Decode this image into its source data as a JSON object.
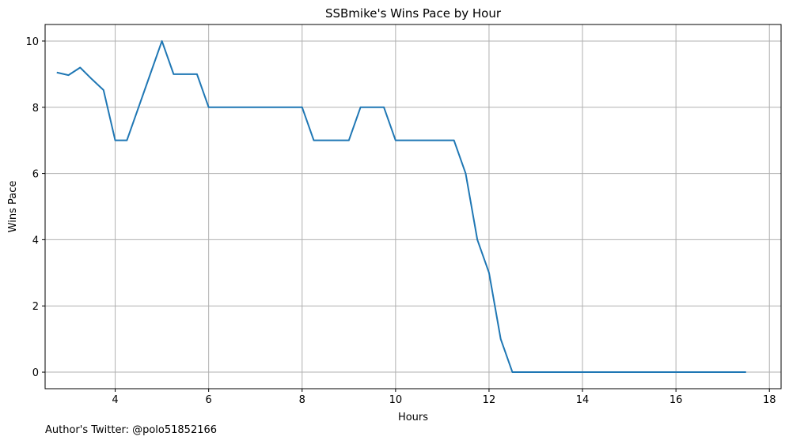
{
  "chart_data": {
    "type": "line",
    "title": "SSBmike's Wins Pace by Hour",
    "xlabel": "Hours",
    "ylabel": "Wins Pace",
    "xlim": [
      2.5,
      18.25
    ],
    "ylim": [
      -0.5,
      10.5
    ],
    "xticks": [
      4,
      6,
      8,
      10,
      12,
      14,
      16,
      18
    ],
    "yticks": [
      0,
      2,
      4,
      6,
      8,
      10
    ],
    "grid": true,
    "line_color": "#1f77b4",
    "grid_color": "#b0b0b0",
    "series": [
      {
        "x": [
          2.75,
          3.0,
          3.25,
          3.5,
          3.75,
          4.0,
          4.25,
          4.5,
          4.75,
          5.0,
          5.25,
          5.5,
          5.75,
          6.0,
          6.25,
          6.5,
          6.75,
          7.0,
          7.25,
          7.5,
          7.75,
          8.0,
          8.25,
          8.5,
          8.75,
          9.0,
          9.25,
          9.5,
          9.75,
          10.0,
          10.25,
          10.5,
          10.75,
          11.0,
          11.25,
          11.5,
          11.75,
          12.0,
          12.25,
          12.5,
          12.75,
          13.0,
          13.25,
          13.5,
          13.75,
          14.0,
          14.25,
          14.5,
          14.75,
          15.0,
          15.25,
          15.5,
          15.75,
          16.0,
          16.25,
          16.5,
          16.75,
          17.0,
          17.25,
          17.5
        ],
        "values": [
          9.05,
          8.97,
          9.2,
          8.85,
          8.52,
          7.0,
          7.0,
          8.0,
          9.0,
          10.0,
          9.0,
          9.0,
          9.0,
          8.0,
          8.0,
          8.0,
          8.0,
          8.0,
          8.0,
          8.0,
          8.0,
          8.0,
          7.0,
          7.0,
          7.0,
          7.0,
          8.0,
          8.0,
          8.0,
          7.0,
          7.0,
          7.0,
          7.0,
          7.0,
          7.0,
          6.0,
          4.0,
          3.0,
          1.0,
          0.0,
          0.0,
          0.0,
          0.0,
          0.0,
          0.0,
          0.0,
          0.0,
          0.0,
          0.0,
          0.0,
          0.0,
          0.0,
          0.0,
          0.0,
          0.0,
          0.0,
          0.0,
          0.0,
          0.0,
          0.0
        ]
      }
    ]
  },
  "footer": {
    "note": "Author's Twitter: @polo51852166"
  }
}
